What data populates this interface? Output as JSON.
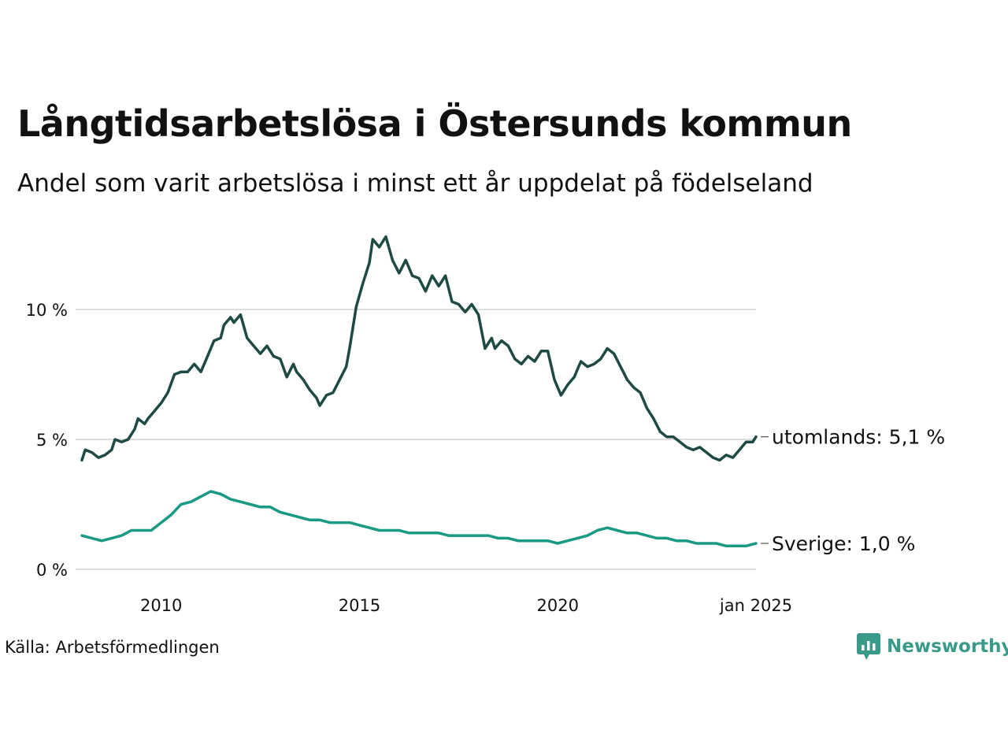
{
  "title": "Långtidsarbetslösa i Östersunds kommun",
  "subtitle": "Andel som varit arbetslösa i minst ett år uppdelat på födelseland",
  "source": "Källa: Arbetsförmedlingen",
  "brand": {
    "name": "Newsworthy",
    "color": "#3a9a8a"
  },
  "chart_data": {
    "type": "line",
    "title": "Långtidsarbetslösa i Östersunds kommun",
    "subtitle": "Andel som varit arbetslösa i minst ett år uppdelat på födelseland",
    "xlabel": "",
    "ylabel": "",
    "xlim": [
      "2008-01",
      "2025-01"
    ],
    "ylim": [
      0,
      13
    ],
    "x_ticks": [
      {
        "value": 2010,
        "label": "2010"
      },
      {
        "value": 2015,
        "label": "2015"
      },
      {
        "value": 2020,
        "label": "2020"
      },
      {
        "value": 2025,
        "label": "jan 2025"
      }
    ],
    "y_ticks": [
      {
        "value": 0,
        "label": "0 %"
      },
      {
        "value": 5,
        "label": "5 %"
      },
      {
        "value": 10,
        "label": "10 %"
      }
    ],
    "grid": "horizontal",
    "legend": "end-labels",
    "series": [
      {
        "name": "utomlands",
        "end_label": "utomlands: 5,1 %",
        "color": "#1f4a44",
        "points": [
          [
            "2008-01",
            4.2
          ],
          [
            "2008-02",
            4.6
          ],
          [
            "2008-04",
            4.5
          ],
          [
            "2008-06",
            4.3
          ],
          [
            "2008-08",
            4.4
          ],
          [
            "2008-10",
            4.6
          ],
          [
            "2008-11",
            5.0
          ],
          [
            "2009-01",
            4.9
          ],
          [
            "2009-03",
            5.0
          ],
          [
            "2009-05",
            5.4
          ],
          [
            "2009-06",
            5.8
          ],
          [
            "2009-08",
            5.6
          ],
          [
            "2009-09",
            5.8
          ],
          [
            "2009-11",
            6.1
          ],
          [
            "2010-01",
            6.4
          ],
          [
            "2010-03",
            6.8
          ],
          [
            "2010-05",
            7.5
          ],
          [
            "2010-07",
            7.6
          ],
          [
            "2010-09",
            7.6
          ],
          [
            "2010-11",
            7.9
          ],
          [
            "2011-01",
            7.6
          ],
          [
            "2011-03",
            8.2
          ],
          [
            "2011-05",
            8.8
          ],
          [
            "2011-07",
            8.9
          ],
          [
            "2011-08",
            9.4
          ],
          [
            "2011-10",
            9.7
          ],
          [
            "2011-11",
            9.5
          ],
          [
            "2012-01",
            9.8
          ],
          [
            "2012-03",
            8.9
          ],
          [
            "2012-05",
            8.6
          ],
          [
            "2012-07",
            8.3
          ],
          [
            "2012-09",
            8.6
          ],
          [
            "2012-11",
            8.2
          ],
          [
            "2013-01",
            8.1
          ],
          [
            "2013-03",
            7.4
          ],
          [
            "2013-05",
            7.9
          ],
          [
            "2013-06",
            7.6
          ],
          [
            "2013-08",
            7.3
          ],
          [
            "2013-10",
            6.9
          ],
          [
            "2013-12",
            6.6
          ],
          [
            "2014-01",
            6.3
          ],
          [
            "2014-03",
            6.7
          ],
          [
            "2014-05",
            6.8
          ],
          [
            "2014-07",
            7.3
          ],
          [
            "2014-09",
            7.8
          ],
          [
            "2014-10",
            8.5
          ],
          [
            "2014-12",
            10.1
          ],
          [
            "2015-02",
            11.0
          ],
          [
            "2015-04",
            11.8
          ],
          [
            "2015-05",
            12.7
          ],
          [
            "2015-07",
            12.4
          ],
          [
            "2015-09",
            12.8
          ],
          [
            "2015-11",
            11.9
          ],
          [
            "2016-01",
            11.4
          ],
          [
            "2016-03",
            11.9
          ],
          [
            "2016-05",
            11.3
          ],
          [
            "2016-07",
            11.2
          ],
          [
            "2016-09",
            10.7
          ],
          [
            "2016-11",
            11.3
          ],
          [
            "2017-01",
            10.9
          ],
          [
            "2017-03",
            11.3
          ],
          [
            "2017-05",
            10.3
          ],
          [
            "2017-07",
            10.2
          ],
          [
            "2017-09",
            9.9
          ],
          [
            "2017-11",
            10.2
          ],
          [
            "2018-01",
            9.8
          ],
          [
            "2018-03",
            8.5
          ],
          [
            "2018-05",
            8.9
          ],
          [
            "2018-06",
            8.5
          ],
          [
            "2018-08",
            8.8
          ],
          [
            "2018-10",
            8.6
          ],
          [
            "2018-12",
            8.1
          ],
          [
            "2019-02",
            7.9
          ],
          [
            "2019-04",
            8.2
          ],
          [
            "2019-06",
            8.0
          ],
          [
            "2019-08",
            8.4
          ],
          [
            "2019-10",
            8.4
          ],
          [
            "2019-12",
            7.3
          ],
          [
            "2020-02",
            6.7
          ],
          [
            "2020-04",
            7.1
          ],
          [
            "2020-06",
            7.4
          ],
          [
            "2020-08",
            8.0
          ],
          [
            "2020-10",
            7.8
          ],
          [
            "2020-12",
            7.9
          ],
          [
            "2021-02",
            8.1
          ],
          [
            "2021-04",
            8.5
          ],
          [
            "2021-06",
            8.3
          ],
          [
            "2021-08",
            7.8
          ],
          [
            "2021-10",
            7.3
          ],
          [
            "2021-12",
            7.0
          ],
          [
            "2022-02",
            6.8
          ],
          [
            "2022-04",
            6.2
          ],
          [
            "2022-06",
            5.8
          ],
          [
            "2022-08",
            5.3
          ],
          [
            "2022-10",
            5.1
          ],
          [
            "2022-12",
            5.1
          ],
          [
            "2023-02",
            4.9
          ],
          [
            "2023-04",
            4.7
          ],
          [
            "2023-06",
            4.6
          ],
          [
            "2023-08",
            4.7
          ],
          [
            "2023-10",
            4.5
          ],
          [
            "2023-12",
            4.3
          ],
          [
            "2024-02",
            4.2
          ],
          [
            "2024-04",
            4.4
          ],
          [
            "2024-06",
            4.3
          ],
          [
            "2024-08",
            4.6
          ],
          [
            "2024-10",
            4.9
          ],
          [
            "2024-12",
            4.9
          ],
          [
            "2025-01",
            5.1
          ]
        ]
      },
      {
        "name": "Sverige",
        "end_label": "Sverige: 1,0 %",
        "color": "#1a9985",
        "points": [
          [
            "2008-01",
            1.3
          ],
          [
            "2008-04",
            1.2
          ],
          [
            "2008-07",
            1.1
          ],
          [
            "2008-10",
            1.2
          ],
          [
            "2009-01",
            1.3
          ],
          [
            "2009-04",
            1.5
          ],
          [
            "2009-07",
            1.5
          ],
          [
            "2009-10",
            1.5
          ],
          [
            "2010-01",
            1.8
          ],
          [
            "2010-04",
            2.1
          ],
          [
            "2010-07",
            2.5
          ],
          [
            "2010-10",
            2.6
          ],
          [
            "2011-01",
            2.8
          ],
          [
            "2011-04",
            3.0
          ],
          [
            "2011-07",
            2.9
          ],
          [
            "2011-10",
            2.7
          ],
          [
            "2012-01",
            2.6
          ],
          [
            "2012-04",
            2.5
          ],
          [
            "2012-07",
            2.4
          ],
          [
            "2012-10",
            2.4
          ],
          [
            "2013-01",
            2.2
          ],
          [
            "2013-04",
            2.1
          ],
          [
            "2013-07",
            2.0
          ],
          [
            "2013-10",
            1.9
          ],
          [
            "2014-01",
            1.9
          ],
          [
            "2014-04",
            1.8
          ],
          [
            "2014-07",
            1.8
          ],
          [
            "2014-10",
            1.8
          ],
          [
            "2015-01",
            1.7
          ],
          [
            "2015-04",
            1.6
          ],
          [
            "2015-07",
            1.5
          ],
          [
            "2015-10",
            1.5
          ],
          [
            "2016-01",
            1.5
          ],
          [
            "2016-04",
            1.4
          ],
          [
            "2016-07",
            1.4
          ],
          [
            "2016-10",
            1.4
          ],
          [
            "2017-01",
            1.4
          ],
          [
            "2017-04",
            1.3
          ],
          [
            "2017-07",
            1.3
          ],
          [
            "2017-10",
            1.3
          ],
          [
            "2018-01",
            1.3
          ],
          [
            "2018-04",
            1.3
          ],
          [
            "2018-07",
            1.2
          ],
          [
            "2018-10",
            1.2
          ],
          [
            "2019-01",
            1.1
          ],
          [
            "2019-04",
            1.1
          ],
          [
            "2019-07",
            1.1
          ],
          [
            "2019-10",
            1.1
          ],
          [
            "2020-01",
            1.0
          ],
          [
            "2020-04",
            1.1
          ],
          [
            "2020-07",
            1.2
          ],
          [
            "2020-10",
            1.3
          ],
          [
            "2021-01",
            1.5
          ],
          [
            "2021-04",
            1.6
          ],
          [
            "2021-07",
            1.5
          ],
          [
            "2021-10",
            1.4
          ],
          [
            "2022-01",
            1.4
          ],
          [
            "2022-04",
            1.3
          ],
          [
            "2022-07",
            1.2
          ],
          [
            "2022-10",
            1.2
          ],
          [
            "2023-01",
            1.1
          ],
          [
            "2023-04",
            1.1
          ],
          [
            "2023-07",
            1.0
          ],
          [
            "2023-10",
            1.0
          ],
          [
            "2024-01",
            1.0
          ],
          [
            "2024-04",
            0.9
          ],
          [
            "2024-07",
            0.9
          ],
          [
            "2024-10",
            0.9
          ],
          [
            "2025-01",
            1.0
          ]
        ]
      }
    ]
  }
}
